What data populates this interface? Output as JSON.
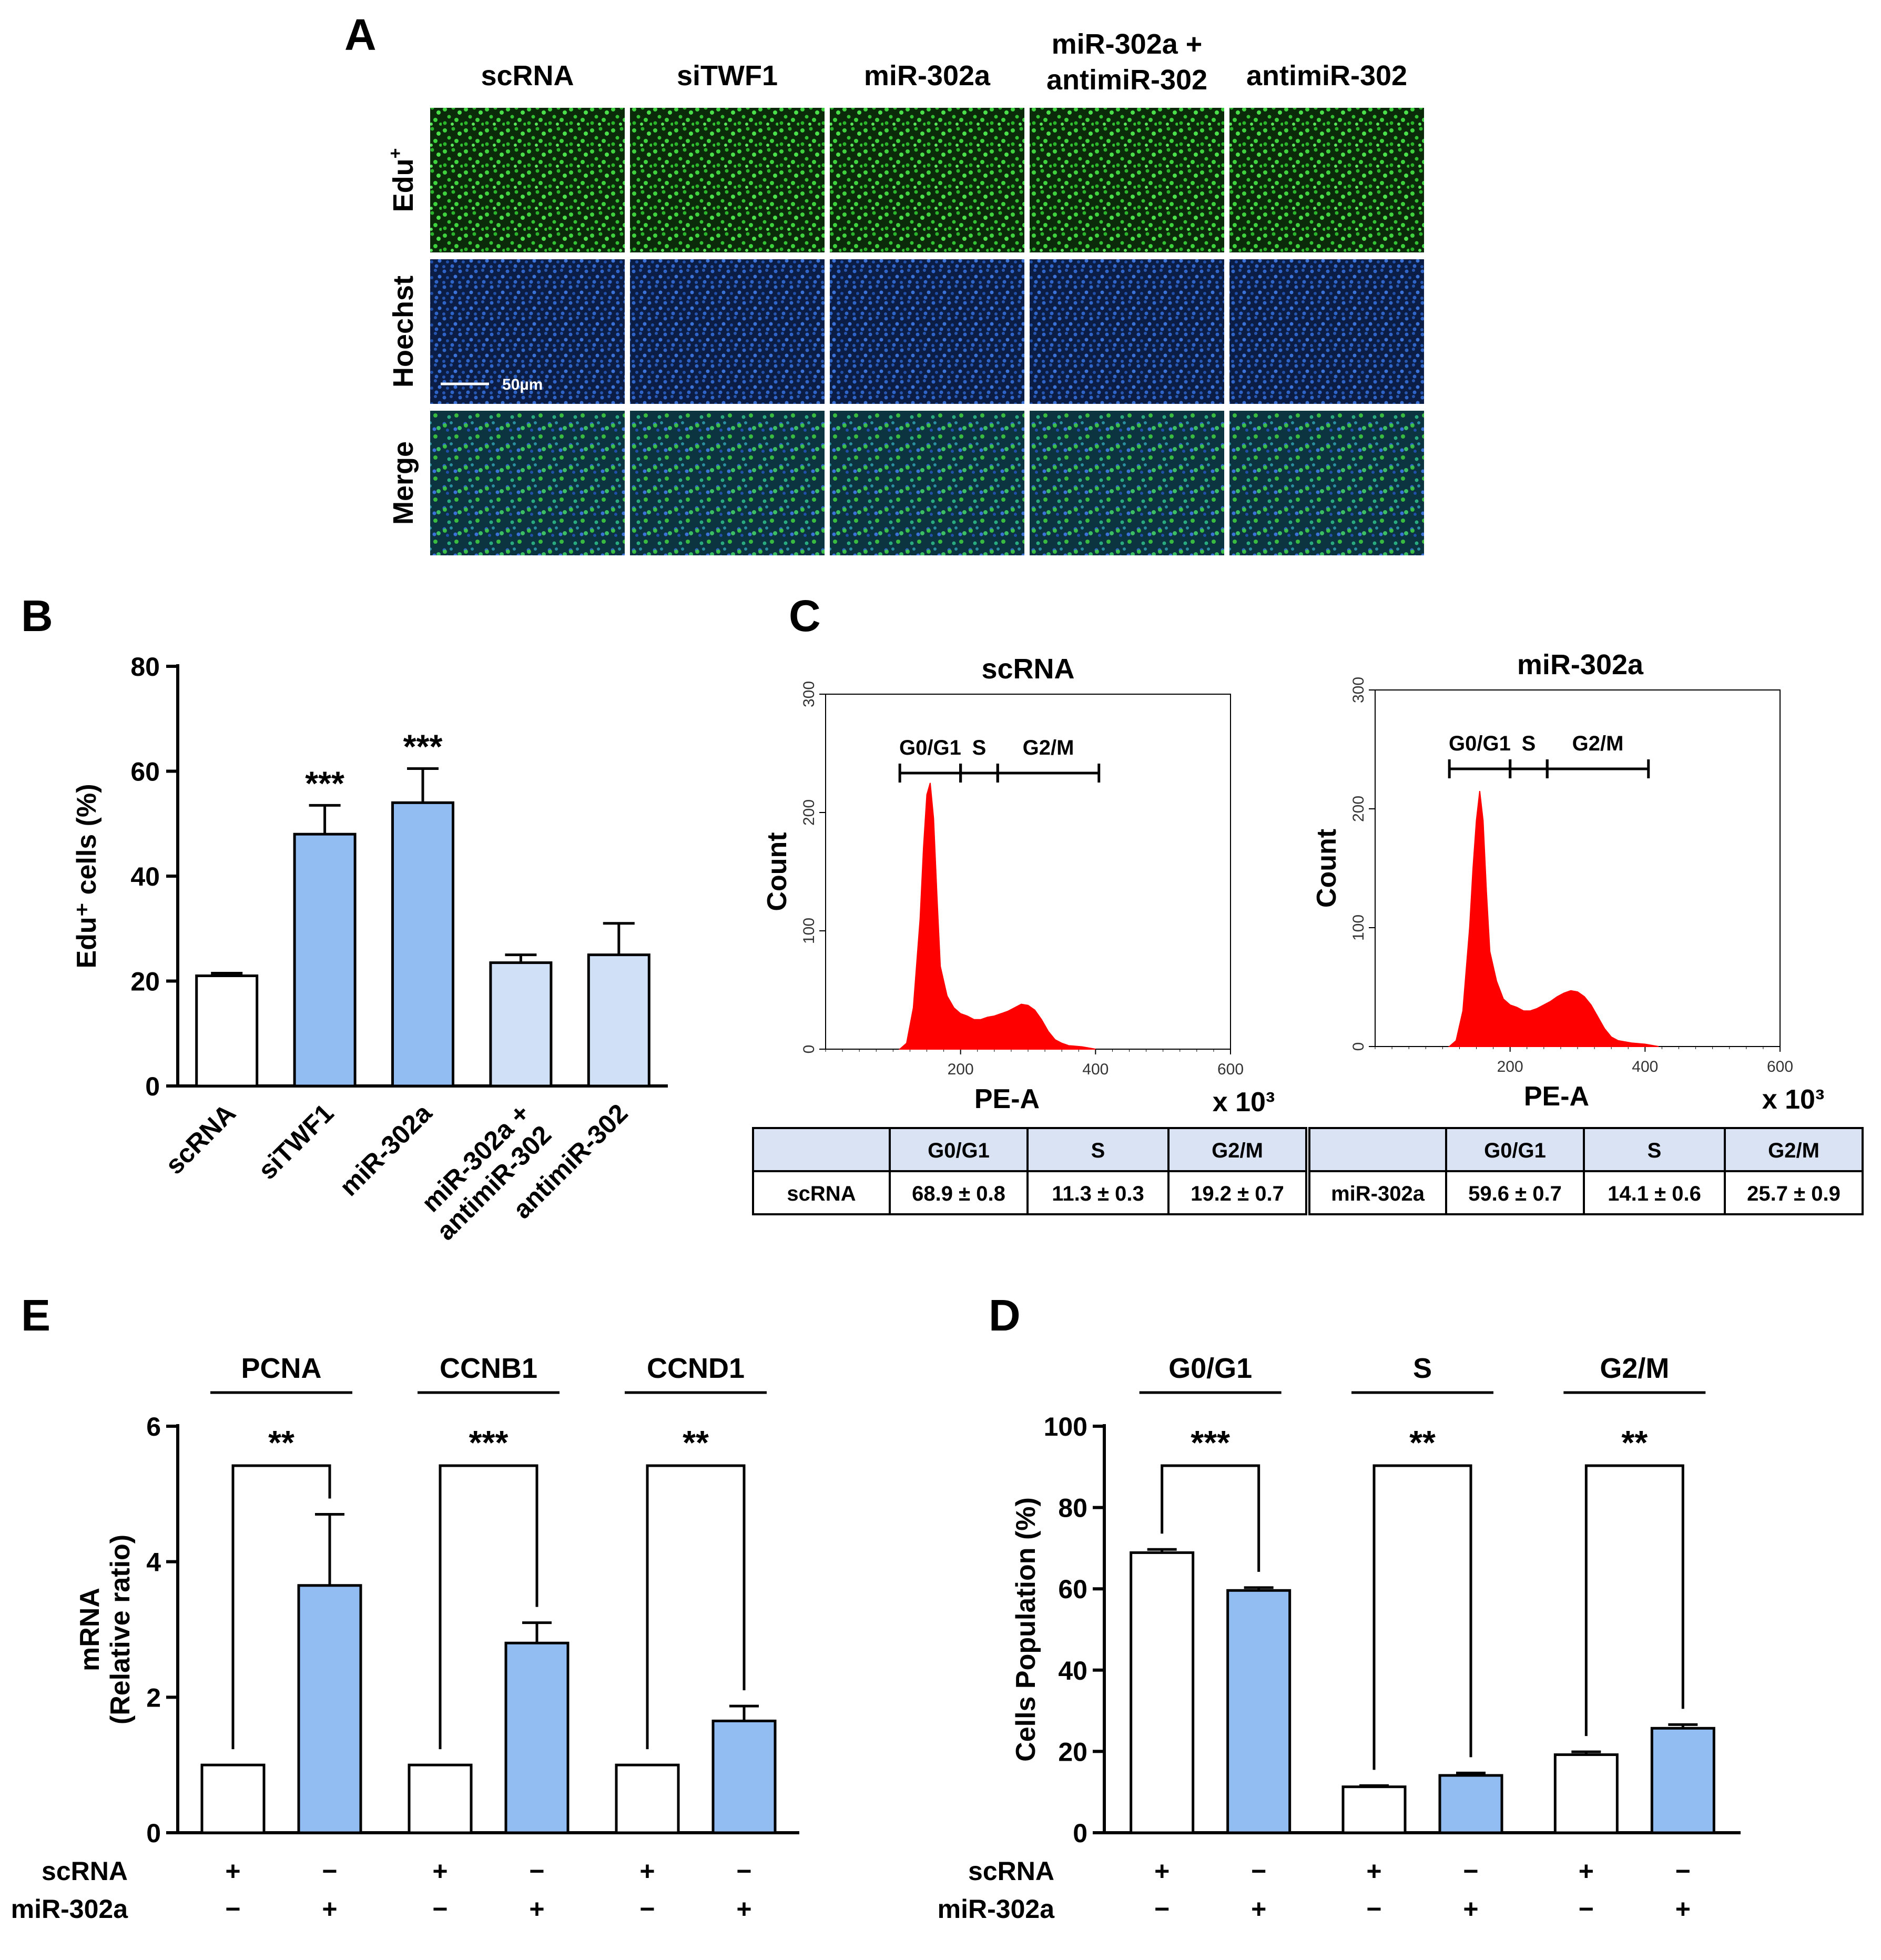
{
  "panels": {
    "A": {
      "letter": "A",
      "columns": [
        "scRNA",
        "siTWF1",
        "miR-302a",
        "miR-302a +",
        "antimiR-302",
        "antimiR-302"
      ],
      "column_headers": [
        {
          "l1": "scRNA",
          "l2": ""
        },
        {
          "l1": "siTWF1",
          "l2": ""
        },
        {
          "l1": "miR-302a",
          "l2": ""
        },
        {
          "l1": "miR-302a +",
          "l2": "antimiR-302"
        },
        {
          "l1": "antimiR-302",
          "l2": ""
        }
      ],
      "rows": [
        {
          "label": "Edu",
          "sup": "+",
          "color": "#1f8c24"
        },
        {
          "label": "Hoechst",
          "sup": "",
          "color": "#1f4f9c"
        },
        {
          "label": "Merge",
          "sup": "",
          "color": "#1c7a6c"
        }
      ],
      "scale_bar": "50µm"
    },
    "B": {
      "letter": "B"
    },
    "C": {
      "letter": "C"
    },
    "D": {
      "letter": "D"
    },
    "E": {
      "letter": "E"
    }
  },
  "chart_data": [
    {
      "id": "B",
      "type": "bar",
      "ylabel": "Edu⁺ cells (%)",
      "ylim": [
        0,
        80
      ],
      "yticks": [
        0,
        20,
        40,
        60,
        80
      ],
      "categories": [
        "scRNA",
        "siTWF1",
        "miR-302a",
        "miR-302a + antimiR-302",
        "antimiR-302"
      ],
      "category_lines": [
        [
          "scRNA"
        ],
        [
          "siTWF1"
        ],
        [
          "miR-302a"
        ],
        [
          "miR-302a +",
          "antimiR-302"
        ],
        [
          "antimiR-302"
        ]
      ],
      "values": [
        21,
        48,
        54,
        23.5,
        25
      ],
      "errors": [
        0.5,
        5.5,
        6.5,
        1.5,
        6
      ],
      "significance": [
        "",
        "***",
        "***",
        "",
        ""
      ],
      "colors": [
        "#ffffff",
        "#92bdf3",
        "#92bdf3",
        "#cfe0f7",
        "#cfe0f7"
      ]
    },
    {
      "id": "C1",
      "type": "area",
      "title": "scRNA",
      "xlabel": "PE-A",
      "xunit": "x 10³",
      "ylabel": "Count",
      "xlim": [
        0,
        600
      ],
      "ylim": [
        0,
        300
      ],
      "xticks": [
        200,
        400,
        600
      ],
      "yticks": [
        0,
        100,
        200,
        300
      ],
      "gates": [
        {
          "label": "G0/G1",
          "from": 110,
          "to": 200
        },
        {
          "label": "S",
          "from": 200,
          "to": 255
        },
        {
          "label": "G2/M",
          "from": 255,
          "to": 405
        }
      ],
      "x": [
        110,
        120,
        130,
        140,
        145,
        150,
        155,
        160,
        165,
        170,
        180,
        190,
        200,
        210,
        220,
        230,
        240,
        250,
        260,
        270,
        280,
        290,
        300,
        310,
        320,
        330,
        340,
        350,
        360,
        380,
        400
      ],
      "y": [
        0,
        5,
        35,
        110,
        170,
        215,
        225,
        195,
        130,
        70,
        45,
        35,
        30,
        28,
        25,
        25,
        27,
        28,
        30,
        32,
        35,
        38,
        37,
        33,
        25,
        15,
        8,
        5,
        3,
        2,
        0
      ],
      "color": "#ff0000"
    },
    {
      "id": "C2",
      "type": "area",
      "title": "miR-302a",
      "xlabel": "PE-A",
      "xunit": "x 10³",
      "ylabel": "Count",
      "xlim": [
        0,
        600
      ],
      "ylim": [
        0,
        300
      ],
      "xticks": [
        200,
        400,
        600
      ],
      "yticks": [
        0,
        100,
        200,
        300
      ],
      "gates": [
        {
          "label": "G0/G1",
          "from": 110,
          "to": 200
        },
        {
          "label": "S",
          "from": 200,
          "to": 255
        },
        {
          "label": "G2/M",
          "from": 255,
          "to": 405
        }
      ],
      "x": [
        110,
        120,
        130,
        140,
        145,
        150,
        155,
        160,
        165,
        170,
        180,
        190,
        200,
        210,
        220,
        230,
        240,
        250,
        260,
        270,
        280,
        290,
        300,
        310,
        320,
        330,
        340,
        350,
        360,
        380,
        400,
        420
      ],
      "y": [
        0,
        5,
        30,
        100,
        150,
        190,
        215,
        190,
        130,
        80,
        55,
        40,
        35,
        33,
        30,
        30,
        32,
        35,
        38,
        42,
        45,
        47,
        46,
        42,
        35,
        25,
        15,
        8,
        5,
        3,
        2,
        0
      ],
      "color": "#ff0000"
    },
    {
      "id": "C_tables",
      "type": "table",
      "headers": [
        "",
        "G0/G1",
        "S",
        "G2/M"
      ],
      "rows": [
        [
          "scRNA",
          "68.9 ± 0.8",
          "11.3 ± 0.3",
          "19.2 ± 0.7"
        ],
        [
          "miR-302a",
          "59.6 ± 0.7",
          "14.1 ± 0.6",
          "25.7 ± 0.9"
        ]
      ]
    },
    {
      "id": "E",
      "type": "bar",
      "ylabel_lines": [
        "mRNA",
        "(Relative ratio)"
      ],
      "ylim": [
        0,
        6
      ],
      "yticks": [
        0,
        2,
        4,
        6
      ],
      "groups": [
        "PCNA",
        "CCNB1",
        "CCND1"
      ],
      "significance": [
        "**",
        "***",
        "**"
      ],
      "series": [
        {
          "name": "scRNA",
          "values": [
            1.0,
            1.0,
            1.0
          ],
          "errors": [
            0,
            0,
            0
          ],
          "color": "#ffffff"
        },
        {
          "name": "miR-302a",
          "values": [
            3.65,
            2.8,
            1.65
          ],
          "errors": [
            1.05,
            0.3,
            0.22
          ],
          "color": "#92bdf3"
        }
      ],
      "condition_rows": [
        {
          "label": "scRNA",
          "signs": [
            "+",
            "−",
            "+",
            "−",
            "+",
            "−"
          ]
        },
        {
          "label": "miR-302a",
          "signs": [
            "−",
            "+",
            "−",
            "+",
            "−",
            "+"
          ]
        }
      ]
    },
    {
      "id": "D",
      "type": "bar",
      "ylabel": "Cells Population (%)",
      "ylim": [
        0,
        100
      ],
      "yticks": [
        0,
        20,
        40,
        60,
        80,
        100
      ],
      "groups": [
        "G0/G1",
        "S",
        "G2/M"
      ],
      "significance": [
        "***",
        "**",
        "**"
      ],
      "series": [
        {
          "name": "scRNA",
          "values": [
            68.9,
            11.3,
            19.2
          ],
          "errors": [
            0.8,
            0.3,
            0.7
          ],
          "color": "#ffffff"
        },
        {
          "name": "miR-302a",
          "values": [
            59.6,
            14.1,
            25.7
          ],
          "errors": [
            0.7,
            0.6,
            0.9
          ],
          "color": "#92bdf3"
        }
      ],
      "condition_rows": [
        {
          "label": "scRNA",
          "signs": [
            "+",
            "−",
            "+",
            "−",
            "+",
            "−"
          ]
        },
        {
          "label": "miR-302a",
          "signs": [
            "−",
            "+",
            "−",
            "+",
            "−",
            "+"
          ]
        }
      ]
    }
  ]
}
